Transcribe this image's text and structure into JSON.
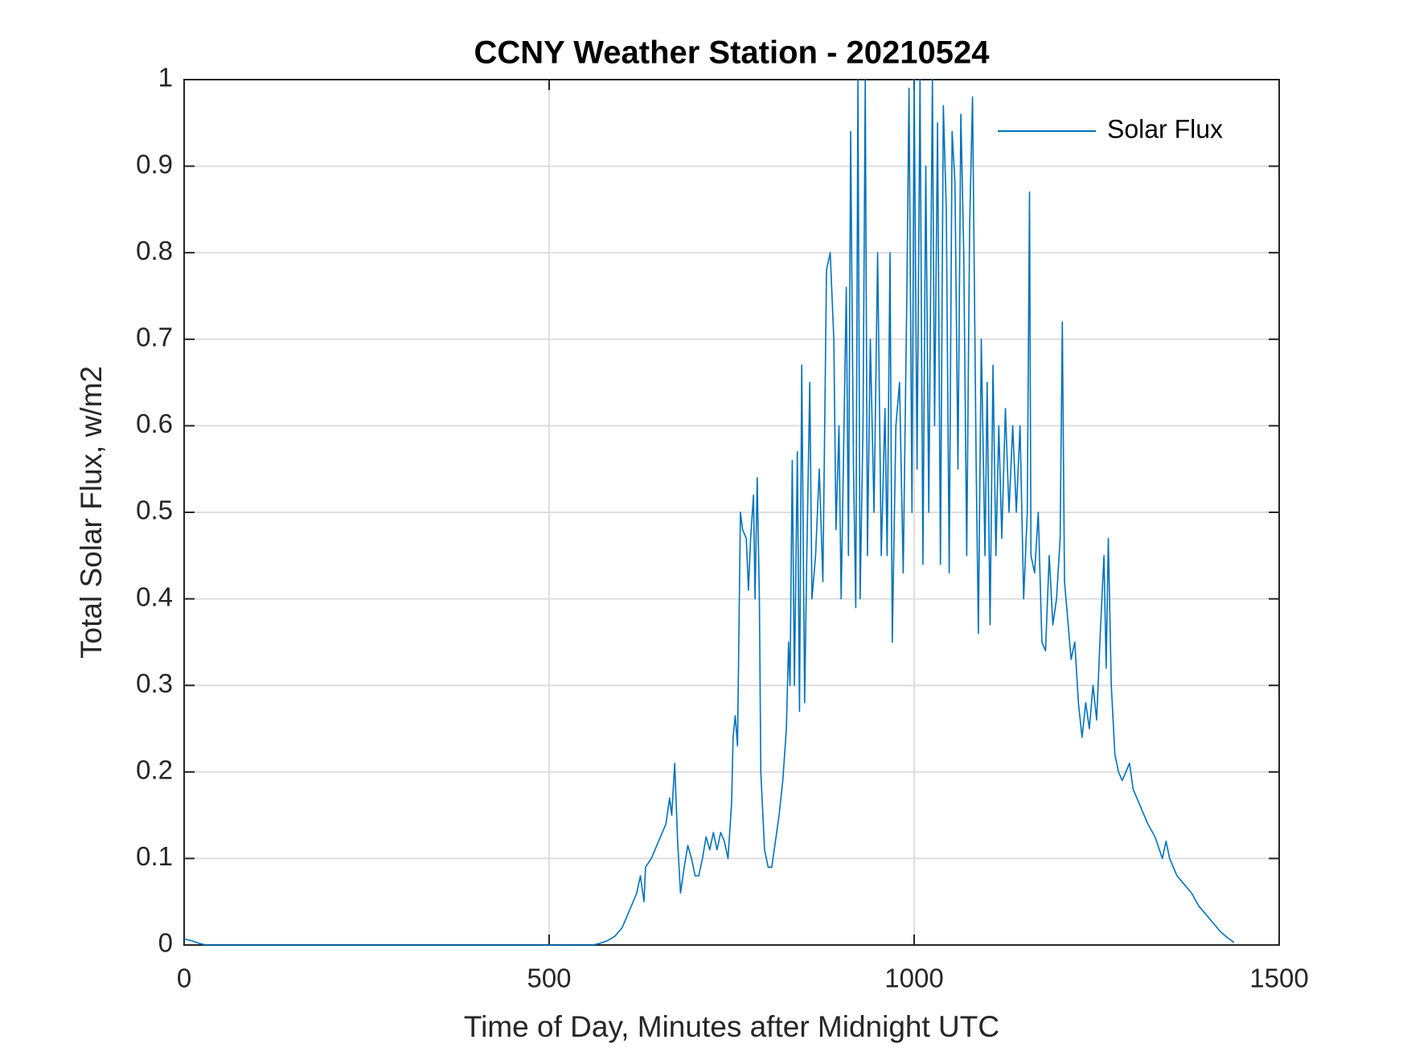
{
  "chart_data": {
    "type": "line",
    "title": "CCNY Weather Station - 20210524",
    "xlabel": "Time of Day, Minutes after Midnight UTC",
    "ylabel": "Total Solar Flux, w/m2",
    "xlim": [
      0,
      1500
    ],
    "xticks": [
      0,
      500,
      1000,
      1500
    ],
    "ylim": [
      0,
      1
    ],
    "yticks": [
      0,
      0.1,
      0.2,
      0.3,
      0.4,
      0.5,
      0.6,
      0.7,
      0.8,
      0.9,
      1
    ],
    "grid": true,
    "legend": "northeast",
    "x": [
      0,
      10,
      20,
      30,
      100,
      200,
      300,
      400,
      500,
      560,
      570,
      580,
      590,
      600,
      610,
      620,
      625,
      630,
      632,
      640,
      650,
      660,
      665,
      668,
      672,
      676,
      680,
      685,
      690,
      695,
      700,
      705,
      710,
      715,
      720,
      725,
      730,
      735,
      740,
      745,
      750,
      752,
      755,
      758,
      762,
      765,
      770,
      773,
      776,
      780,
      782,
      785,
      788,
      790,
      795,
      800,
      805,
      810,
      815,
      820,
      825,
      828,
      830,
      833,
      836,
      840,
      843,
      846,
      850,
      853,
      857,
      860,
      865,
      870,
      875,
      880,
      885,
      890,
      893,
      897,
      900,
      903,
      907,
      910,
      913,
      917,
      920,
      923,
      926,
      930,
      933,
      936,
      940,
      945,
      950,
      955,
      960,
      963,
      967,
      970,
      975,
      980,
      985,
      990,
      993,
      997,
      1000,
      1004,
      1008,
      1012,
      1016,
      1020,
      1025,
      1028,
      1032,
      1036,
      1040,
      1044,
      1048,
      1052,
      1056,
      1060,
      1064,
      1068,
      1072,
      1076,
      1080,
      1085,
      1088,
      1092,
      1097,
      1100,
      1104,
      1108,
      1112,
      1116,
      1120,
      1125,
      1130,
      1135,
      1140,
      1145,
      1150,
      1155,
      1158,
      1160,
      1165,
      1170,
      1175,
      1180,
      1185,
      1190,
      1195,
      1200,
      1203,
      1206,
      1210,
      1215,
      1220,
      1225,
      1230,
      1235,
      1240,
      1245,
      1250,
      1255,
      1260,
      1263,
      1266,
      1270,
      1275,
      1280,
      1285,
      1290,
      1295,
      1300,
      1310,
      1320,
      1330,
      1340,
      1345,
      1350,
      1360,
      1370,
      1380,
      1390,
      1400,
      1410,
      1420,
      1430,
      1438
    ],
    "series": [
      {
        "name": "Solar Flux",
        "color": "#0072BD",
        "values": [
          0.007,
          0.005,
          0.002,
          0,
          0,
          0,
          0,
          0,
          0,
          0,
          0.002,
          0.005,
          0.01,
          0.02,
          0.04,
          0.06,
          0.08,
          0.05,
          0.09,
          0.1,
          0.12,
          0.14,
          0.17,
          0.15,
          0.21,
          0.12,
          0.06,
          0.09,
          0.115,
          0.1,
          0.08,
          0.08,
          0.1,
          0.125,
          0.11,
          0.13,
          0.11,
          0.13,
          0.12,
          0.1,
          0.165,
          0.24,
          0.265,
          0.23,
          0.5,
          0.48,
          0.47,
          0.41,
          0.47,
          0.52,
          0.4,
          0.54,
          0.4,
          0.2,
          0.11,
          0.09,
          0.09,
          0.12,
          0.15,
          0.19,
          0.25,
          0.35,
          0.3,
          0.56,
          0.3,
          0.57,
          0.27,
          0.67,
          0.28,
          0.45,
          0.65,
          0.4,
          0.45,
          0.55,
          0.42,
          0.78,
          0.8,
          0.7,
          0.48,
          0.6,
          0.4,
          0.55,
          0.76,
          0.45,
          0.94,
          0.55,
          0.39,
          1.0,
          0.4,
          0.6,
          1.0,
          0.45,
          0.7,
          0.5,
          0.8,
          0.45,
          0.62,
          0.45,
          0.8,
          0.35,
          0.6,
          0.65,
          0.43,
          0.75,
          0.99,
          0.5,
          1.0,
          0.55,
          1.0,
          0.44,
          0.9,
          0.5,
          1.0,
          0.6,
          0.95,
          0.44,
          0.97,
          0.85,
          0.43,
          0.94,
          0.88,
          0.55,
          0.96,
          0.8,
          0.45,
          0.83,
          0.98,
          0.55,
          0.36,
          0.7,
          0.45,
          0.65,
          0.37,
          0.67,
          0.45,
          0.6,
          0.47,
          0.62,
          0.5,
          0.6,
          0.5,
          0.6,
          0.4,
          0.5,
          0.87,
          0.45,
          0.43,
          0.5,
          0.35,
          0.34,
          0.45,
          0.37,
          0.4,
          0.47,
          0.72,
          0.42,
          0.38,
          0.33,
          0.35,
          0.28,
          0.24,
          0.28,
          0.25,
          0.3,
          0.26,
          0.36,
          0.45,
          0.32,
          0.47,
          0.3,
          0.22,
          0.2,
          0.19,
          0.2,
          0.21,
          0.18,
          0.16,
          0.14,
          0.125,
          0.1,
          0.12,
          0.1,
          0.08,
          0.07,
          0.06,
          0.045,
          0.035,
          0.025,
          0.015,
          0.008,
          0.003
        ]
      }
    ]
  }
}
